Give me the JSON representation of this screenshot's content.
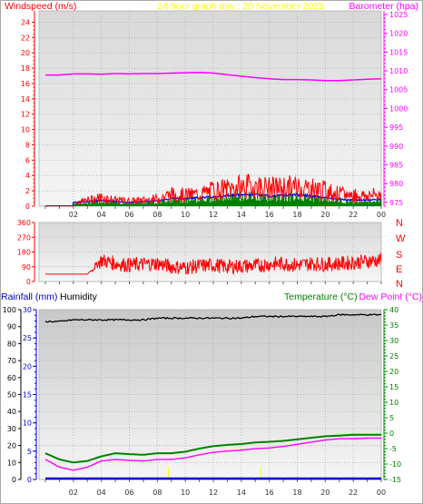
{
  "header": {
    "windspeed_label": "Windspeed (m/s)",
    "title": "24 hour graph day : 20 November 2025",
    "barometer_label": "Barometer (hpa)"
  },
  "bottom_header": {
    "rainfall_label": "Rainfall (mm)",
    "humidity_label": "Humidity",
    "temperature_label": "Temperature (°C)",
    "dewpoint_label": "Dew Point (°C)"
  },
  "compass": [
    "N",
    "W",
    "S",
    "E",
    "N"
  ],
  "colors": {
    "wind": "#ff0000",
    "baro": "#ff00ff",
    "rain": "#0000cc",
    "humidity": "#000000",
    "temperature": "#008000",
    "dewpoint": "#ff00ff",
    "title": "#ffff00",
    "gust": "#ff0000",
    "avg_wind": "#0000ff",
    "wind_bars": "#008000"
  },
  "chart_data": [
    {
      "type": "line",
      "title": "24 hour graph day : 20 November 2025",
      "x_ticks": [
        "02",
        "04",
        "06",
        "08",
        "10",
        "12",
        "14",
        "16",
        "18",
        "20",
        "22",
        "00"
      ],
      "y_left": {
        "label": "Windspeed (m/s)",
        "ticks": [
          0,
          2,
          4,
          6,
          8,
          10,
          12,
          14,
          16,
          18,
          20,
          22,
          24
        ],
        "range": [
          0,
          25
        ]
      },
      "y_right": {
        "label": "Barometer (hpa)",
        "ticks": [
          975,
          980,
          985,
          990,
          995,
          1000,
          1005,
          1010,
          1015,
          1020,
          1025
        ],
        "range": [
          974,
          1025
        ]
      },
      "series": [
        {
          "name": "Barometer (hpa)",
          "axis": "right",
          "hours": [
            0,
            1,
            2,
            3,
            4,
            5,
            6,
            7,
            8,
            9,
            10,
            11,
            12,
            13,
            14,
            15,
            16,
            17,
            18,
            19,
            20,
            21,
            22,
            23,
            24
          ],
          "values": [
            1008.9,
            1008.9,
            1009.2,
            1009.2,
            1009.1,
            1009.3,
            1009.2,
            1009.3,
            1009.3,
            1009.4,
            1009.5,
            1009.6,
            1009.4,
            1009.0,
            1008.6,
            1008.2,
            1007.9,
            1007.7,
            1007.7,
            1007.6,
            1007.4,
            1007.4,
            1007.6,
            1007.8,
            1007.9
          ]
        },
        {
          "name": "Windspeed (m/s)",
          "axis": "left",
          "hours": [
            0,
            1,
            2,
            3,
            4,
            5,
            6,
            7,
            8,
            9,
            10,
            11,
            12,
            13,
            14,
            15,
            16,
            17,
            18,
            19,
            20,
            21,
            22,
            23,
            24
          ],
          "values": [
            0,
            0,
            0.3,
            0.8,
            1.2,
            0.8,
            0.7,
            0.8,
            1.0,
            1.6,
            1.5,
            1.6,
            2.1,
            2.3,
            2.6,
            2.7,
            2.4,
            2.5,
            2.6,
            2.4,
            2.1,
            1.6,
            1.5,
            1.4,
            1.6
          ]
        },
        {
          "hours": [
            0,
            1,
            2,
            3,
            4,
            5,
            6,
            7,
            8,
            9,
            10,
            11,
            12,
            13,
            14,
            15,
            16,
            17,
            18,
            19,
            20,
            21,
            22,
            23,
            24
          ],
          "values": [
            0,
            0,
            0.5,
            0.6,
            0.8,
            0.6,
            0.5,
            0.6,
            0.7,
            1.0,
            1.0,
            1.1,
            1.2,
            1.4,
            1.5,
            1.5,
            1.3,
            1.4,
            1.5,
            1.3,
            1.1,
            0.9,
            0.8,
            0.8,
            0.9
          ]
        }
      ]
    },
    {
      "type": "line",
      "x_ticks": [
        "02",
        "04",
        "06",
        "08",
        "10",
        "12",
        "14",
        "16",
        "18",
        "20",
        "22",
        "00"
      ],
      "y_left": {
        "ticks": [
          0,
          90,
          180,
          270,
          360
        ],
        "range": [
          0,
          360
        ]
      },
      "series": [
        {
          "name": "Wind direction",
          "hours": [
            0,
            1,
            2,
            3,
            4,
            5,
            6,
            7,
            8,
            9,
            10,
            11,
            12,
            13,
            14,
            15,
            16,
            17,
            18,
            19,
            20,
            21,
            22,
            23,
            24
          ],
          "values": [
            45,
            45,
            45,
            45,
            130,
            110,
            100,
            105,
            110,
            90,
            85,
            95,
            100,
            90,
            95,
            95,
            105,
            110,
            100,
            110,
            105,
            110,
            115,
            125,
            130
          ]
        }
      ]
    },
    {
      "type": "line",
      "x_ticks": [
        "02",
        "04",
        "06",
        "08",
        "10",
        "12",
        "14",
        "16",
        "18",
        "20",
        "22",
        "00"
      ],
      "y_left": {
        "label": "Rainfall (mm)",
        "ticks": [
          0,
          5,
          10,
          15,
          20,
          25,
          30
        ],
        "range": [
          0,
          30
        ]
      },
      "y_left_outer": {
        "label": "Humidity",
        "ticks": [
          0,
          10,
          20,
          30,
          40,
          50,
          60,
          70,
          80,
          90,
          100
        ],
        "range": [
          0,
          100
        ]
      },
      "y_right": {
        "label": "Temperature (°C)",
        "ticks": [
          -15,
          -10,
          -5,
          0,
          5,
          10,
          15,
          20,
          25,
          30,
          35,
          40
        ],
        "range": [
          -15,
          40
        ]
      },
      "series": [
        {
          "name": "Humidity",
          "axis": "left_outer",
          "hours": [
            0,
            1,
            2,
            3,
            4,
            5,
            6,
            7,
            8,
            9,
            10,
            11,
            12,
            13,
            14,
            15,
            16,
            17,
            18,
            19,
            20,
            21,
            22,
            23,
            24
          ],
          "values": [
            93,
            93,
            94,
            94,
            94,
            94,
            94,
            94,
            95,
            95,
            95,
            95,
            95,
            95,
            95,
            96,
            96,
            96,
            96,
            96,
            96,
            97,
            97,
            97,
            97
          ]
        },
        {
          "name": "Temperature (°C)",
          "axis": "right",
          "hours": [
            0,
            1,
            2,
            3,
            4,
            5,
            6,
            7,
            8,
            9,
            10,
            11,
            12,
            13,
            14,
            15,
            16,
            17,
            18,
            19,
            20,
            21,
            22,
            23,
            24
          ],
          "values": [
            -6.5,
            -8.5,
            -9.5,
            -9.0,
            -7.5,
            -6.5,
            -6.8,
            -7.0,
            -6.5,
            -6.5,
            -6.0,
            -5.0,
            -4.2,
            -3.8,
            -3.5,
            -3.0,
            -2.8,
            -2.5,
            -2.0,
            -1.5,
            -1.0,
            -0.8,
            -0.5,
            -0.5,
            -0.5
          ]
        },
        {
          "name": "Dew Point (°C)",
          "axis": "right",
          "hours": [
            0,
            1,
            2,
            3,
            4,
            5,
            6,
            7,
            8,
            9,
            10,
            11,
            12,
            13,
            14,
            15,
            16,
            17,
            18,
            19,
            20,
            21,
            22,
            23,
            24
          ],
          "values": [
            -8.5,
            -11,
            -12,
            -11,
            -9,
            -8.5,
            -8.8,
            -9,
            -8.5,
            -8.5,
            -8,
            -7,
            -6.2,
            -5.8,
            -5.5,
            -5,
            -4.8,
            -4.3,
            -3.6,
            -2.9,
            -2.2,
            -1.8,
            -1.8,
            -1.6,
            -1.6
          ]
        },
        {
          "name": "Rainfall (mm)",
          "axis": "left",
          "hours": [
            0,
            24
          ],
          "values": [
            0,
            0
          ]
        }
      ]
    }
  ]
}
